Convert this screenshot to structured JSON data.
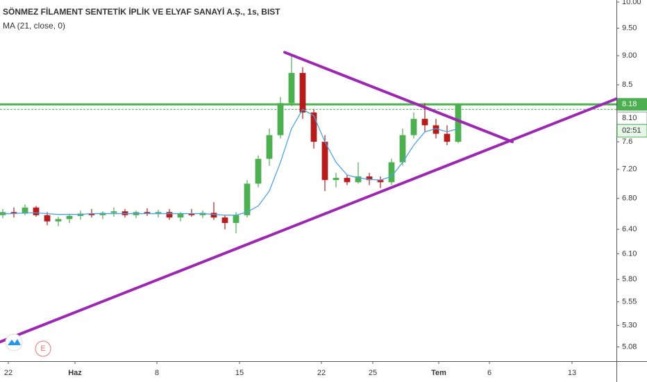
{
  "chart_data": {
    "type": "candlestick",
    "title": "SÖNMEZ FİLAMENT SENTETİK İPLİK VE ELYAF SANAYİ A.Ş., 1s, BIST",
    "indicator_label": "MA (21, close, 0)",
    "event_badge": "E",
    "x": [
      0,
      1,
      2,
      3,
      4,
      5,
      6,
      7,
      8,
      9,
      10,
      11,
      12,
      13,
      14,
      15,
      16,
      17,
      18,
      19,
      20,
      21,
      22,
      23,
      24,
      25,
      26,
      27,
      28,
      29,
      30,
      31,
      32,
      33,
      34,
      35,
      36,
      37,
      38,
      39,
      40,
      41
    ],
    "open": [
      6.58,
      6.62,
      6.6,
      6.68,
      6.58,
      6.5,
      6.53,
      6.57,
      6.6,
      6.58,
      6.61,
      6.63,
      6.58,
      6.62,
      6.6,
      6.62,
      6.55,
      6.6,
      6.58,
      6.61,
      6.55,
      6.48,
      6.58,
      7.0,
      7.35,
      7.7,
      8.2,
      8.7,
      8.05,
      7.6,
      7.05,
      7.08,
      7.02,
      7.1,
      7.05,
      7.02,
      7.3,
      7.7,
      7.95,
      7.85,
      7.72,
      7.6
    ],
    "high": [
      6.66,
      6.68,
      6.72,
      6.7,
      6.62,
      6.56,
      6.6,
      6.64,
      6.66,
      6.63,
      6.68,
      6.66,
      6.64,
      6.67,
      6.65,
      6.66,
      6.62,
      6.66,
      6.64,
      6.75,
      6.58,
      6.62,
      7.05,
      7.4,
      7.8,
      8.3,
      9.0,
      8.8,
      8.1,
      7.7,
      7.15,
      7.12,
      7.3,
      7.15,
      7.1,
      7.35,
      7.8,
      8.05,
      8.2,
      7.95,
      7.85,
      8.2
    ],
    "low": [
      6.54,
      6.55,
      6.58,
      6.56,
      6.45,
      6.44,
      6.48,
      6.52,
      6.55,
      6.53,
      6.56,
      6.55,
      6.54,
      6.57,
      6.55,
      6.52,
      6.5,
      6.56,
      6.54,
      6.52,
      6.4,
      6.35,
      6.55,
      6.95,
      7.25,
      7.65,
      8.15,
      7.95,
      7.5,
      6.9,
      6.95,
      6.98,
      7.0,
      6.98,
      6.94,
      6.98,
      7.25,
      7.65,
      7.75,
      7.65,
      7.55,
      7.58
    ],
    "close": [
      6.62,
      6.6,
      6.68,
      6.58,
      6.5,
      6.53,
      6.57,
      6.6,
      6.58,
      6.61,
      6.63,
      6.58,
      6.62,
      6.6,
      6.62,
      6.55,
      6.6,
      6.58,
      6.61,
      6.55,
      6.48,
      6.58,
      7.0,
      7.35,
      7.7,
      8.2,
      8.7,
      8.05,
      7.6,
      7.05,
      7.08,
      7.02,
      7.1,
      7.05,
      7.02,
      7.3,
      7.7,
      7.95,
      7.85,
      7.72,
      7.6,
      8.18
    ],
    "up_color": "#4caf50",
    "down_color": "#b71c1c",
    "ma_values": [
      6.6,
      6.6,
      6.61,
      6.61,
      6.6,
      6.59,
      6.59,
      6.59,
      6.6,
      6.6,
      6.6,
      6.6,
      6.6,
      6.6,
      6.6,
      6.6,
      6.6,
      6.6,
      6.6,
      6.59,
      6.58,
      6.58,
      6.62,
      6.7,
      6.9,
      7.3,
      7.8,
      8.1,
      8.0,
      7.6,
      7.3,
      7.12,
      7.08,
      7.06,
      7.05,
      7.1,
      7.3,
      7.55,
      7.75,
      7.8,
      7.75,
      7.8
    ],
    "ma_color": "#4aa3df",
    "trendlines": [
      {
        "x": [
          25.375,
          45.875
        ],
        "y": [
          9.06,
          7.6
        ],
        "color": "#9c27b0"
      },
      {
        "x": [
          -0.25,
          55.25
        ],
        "y": [
          5.13,
          8.27
        ],
        "color": "#9c27b0"
      }
    ],
    "last_price": 8.18,
    "last_price_color": "#4caf50",
    "prev_close": {
      "value": 8.1,
      "label": "8.10"
    },
    "countdown": "02:51",
    "log_scale": true,
    "ylim": [
      4.94,
      10.04
    ],
    "yticks": [
      {
        "value": 10,
        "label": "10.00"
      },
      {
        "value": 9.5,
        "label": "9.50"
      },
      {
        "value": 9,
        "label": "9.00"
      },
      8.5,
      7.6,
      {
        "value": 7.2,
        "label": "7.20"
      },
      {
        "value": 6.8,
        "label": "6.80"
      },
      {
        "value": 6.4,
        "label": "6.40"
      },
      {
        "value": 6.1,
        "label": "6.10"
      },
      {
        "value": 5.8,
        "label": "5.80"
      },
      5.55,
      {
        "value": 5.3,
        "label": "5.30"
      },
      5.08
    ],
    "xlim": [
      -0.25,
      55.25
    ],
    "xticks": [
      {
        "value": 0.5,
        "label": "22"
      },
      {
        "value": 6.5,
        "label": "Haz"
      },
      {
        "value": 13.875,
        "label": "8"
      },
      {
        "value": 21.3125,
        "label": "15"
      },
      {
        "value": 28.6875,
        "label": "22"
      },
      {
        "value": 33.3125,
        "label": "25"
      },
      {
        "value": 39.25,
        "label": "Tem"
      },
      {
        "value": 43.8125,
        "label": "6"
      },
      {
        "value": 51.25,
        "label": "13"
      }
    ]
  }
}
